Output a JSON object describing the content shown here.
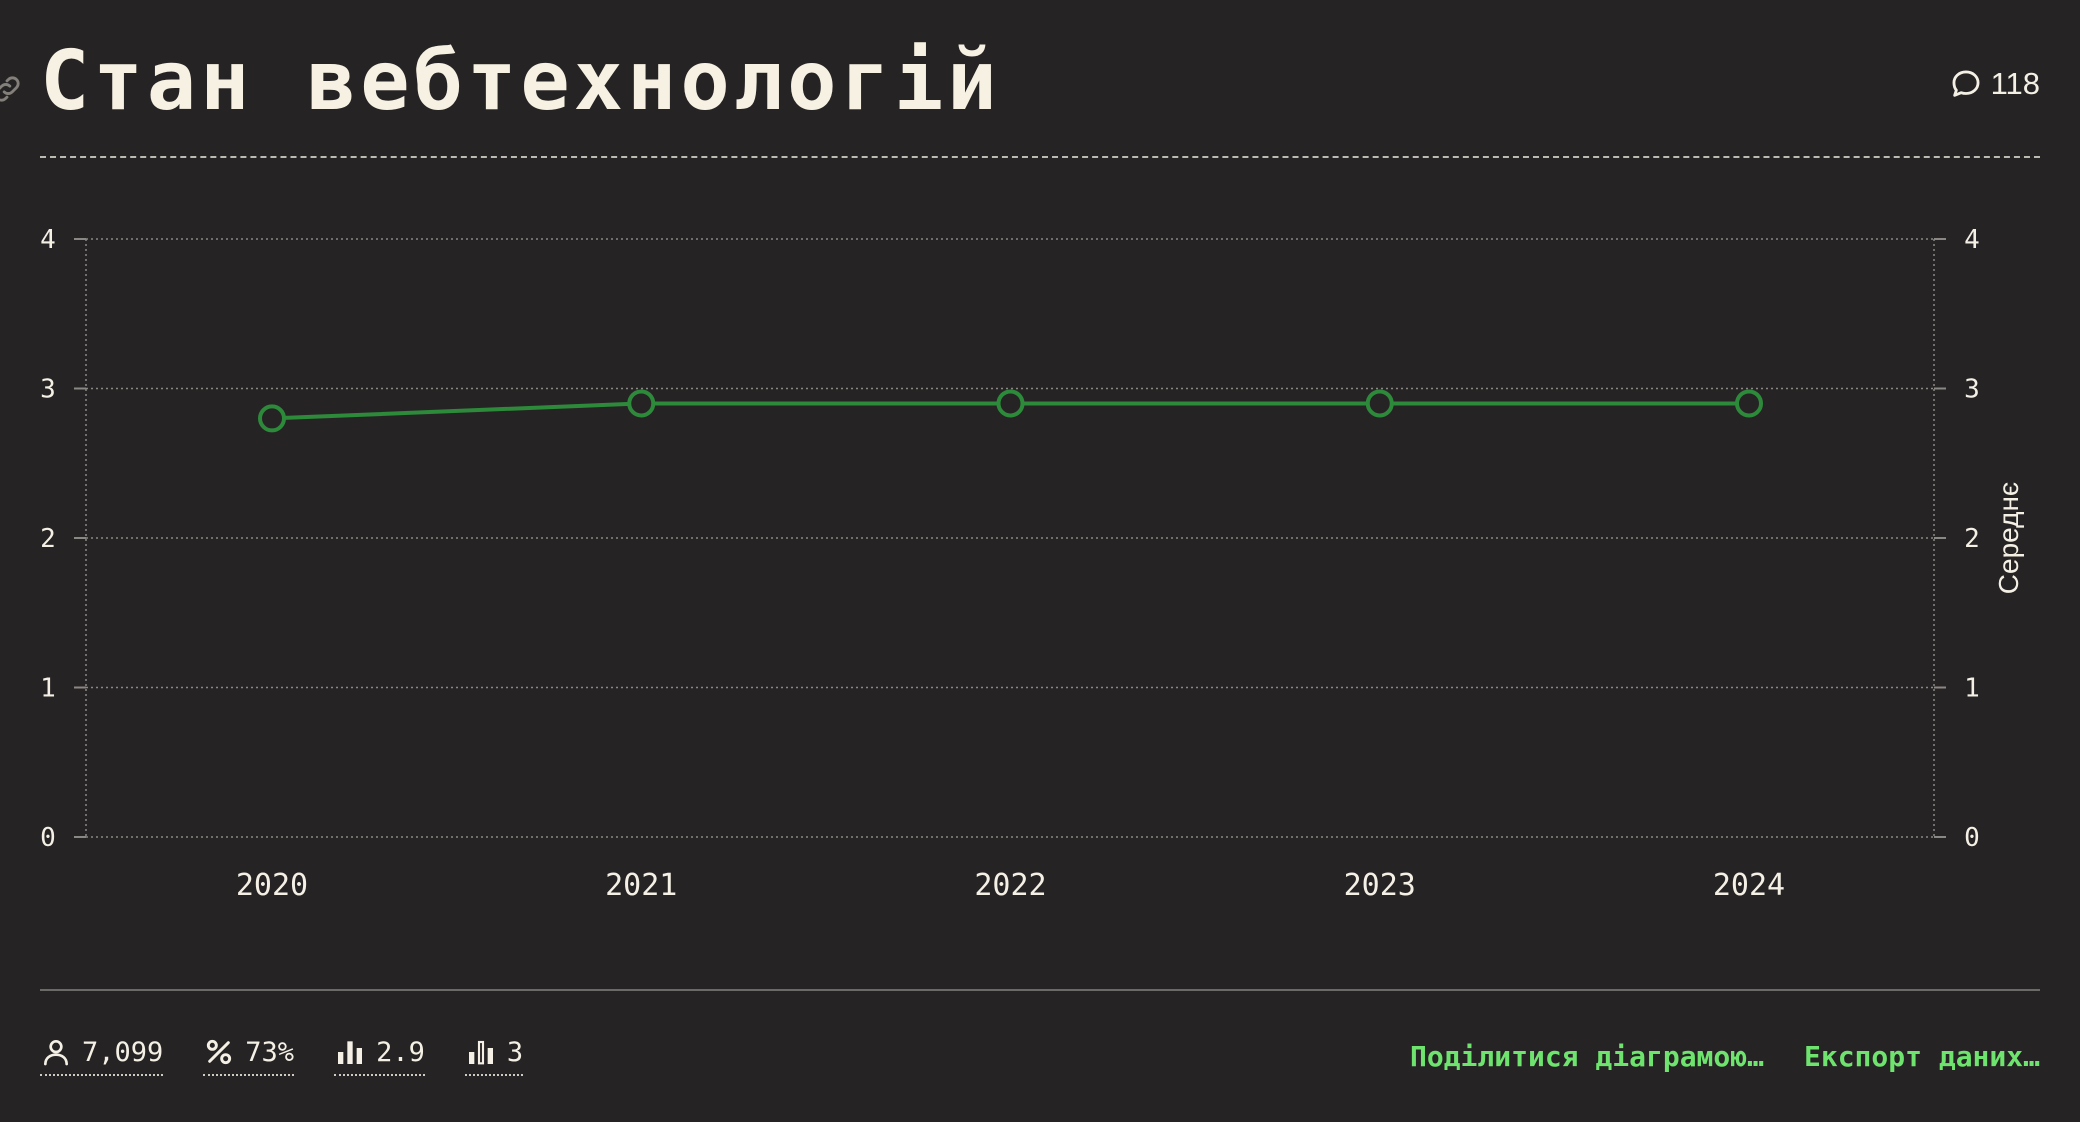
{
  "header": {
    "title": "Стан вебтехнологій",
    "comments_count": "118"
  },
  "colors": {
    "background": "#262324",
    "series": "#2d8a3a",
    "accent": "#6ee36e",
    "grid": "#8a8784"
  },
  "chart_data": {
    "type": "line",
    "x": [
      "2020",
      "2021",
      "2022",
      "2023",
      "2024"
    ],
    "series": [
      {
        "name": "Середнє",
        "values": [
          2.8,
          2.9,
          2.9,
          2.9,
          2.9
        ]
      }
    ],
    "ylim": [
      0,
      4
    ],
    "y_ticks": [
      "0",
      "1",
      "2",
      "3",
      "4"
    ],
    "y2label": "Середнє",
    "grid": true
  },
  "footer": {
    "stats": [
      {
        "icon": "user-icon",
        "value": "7,099"
      },
      {
        "icon": "percent-icon",
        "value": "73%"
      },
      {
        "icon": "bar-chart-icon",
        "value": "2.9"
      },
      {
        "icon": "bar-chart-outline-icon",
        "value": "3"
      }
    ],
    "share_label": "Поділитися діаграмою…",
    "export_label": "Експорт даних…"
  }
}
